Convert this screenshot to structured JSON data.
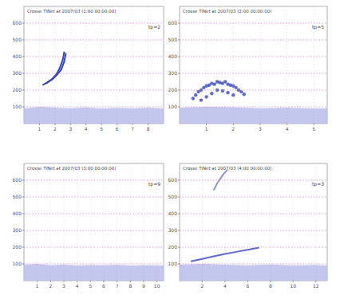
{
  "chart_data": [
    {
      "type": "line",
      "title": "Crosse TiNet at 2007/03 (1:00 00:00:00)",
      "annotations": [
        "tp=2"
      ],
      "xlim": [
        0,
        9
      ],
      "xticks": [
        1,
        2,
        3,
        4,
        5,
        6,
        7,
        8
      ],
      "ylim": [
        0,
        700
      ],
      "yticks": [
        100,
        200,
        300,
        400,
        500,
        600
      ],
      "grid": true,
      "series": [
        {
          "type": "area",
          "color": "#b9bdea",
          "x": [
            0,
            1,
            2,
            3,
            4,
            5,
            6,
            7,
            8,
            9
          ],
          "values": [
            90,
            100,
            95,
            92,
            96,
            90,
            94,
            92,
            95,
            90
          ]
        },
        {
          "type": "line",
          "color": "#3447c4",
          "x": [
            1.2,
            1.5,
            1.8,
            2.1,
            2.3,
            2.5,
            2.6
          ],
          "values": [
            230,
            245,
            265,
            295,
            330,
            380,
            430
          ]
        },
        {
          "type": "line",
          "color": "#3447c4",
          "x": [
            1.4,
            1.8,
            2.1,
            2.4,
            2.6,
            2.7
          ],
          "values": [
            240,
            262,
            288,
            322,
            372,
            420
          ]
        }
      ]
    },
    {
      "type": "line",
      "title": "Crosse TiNet at 2007/03 (2:00 00:00:00)",
      "annotations": [
        "tp=5"
      ],
      "xlim": [
        0,
        5.5
      ],
      "xticks": [
        1,
        2,
        3,
        4,
        5
      ],
      "ylim": [
        0,
        700
      ],
      "yticks": [
        100,
        200,
        300,
        400,
        500,
        600
      ],
      "grid": true,
      "series": [
        {
          "type": "area",
          "color": "#b9bdea",
          "x": [
            0,
            1,
            2,
            3,
            4,
            5,
            5.5
          ],
          "values": [
            95,
            100,
            98,
            92,
            95,
            90,
            92
          ]
        },
        {
          "type": "scatter",
          "color": "#3447c4",
          "x": [
            0.5,
            0.6,
            0.7,
            0.8,
            0.9,
            1.0,
            1.1,
            1.2,
            1.3,
            1.4,
            1.5,
            1.6,
            1.7,
            1.8,
            1.9,
            2.0,
            2.1,
            2.2,
            2.3,
            2.4,
            0.8,
            1.0,
            1.2,
            1.4,
            1.6,
            1.8,
            2.0
          ],
          "values": [
            150,
            170,
            190,
            200,
            215,
            225,
            230,
            240,
            235,
            250,
            245,
            240,
            250,
            235,
            230,
            225,
            215,
            200,
            190,
            175,
            140,
            160,
            180,
            200,
            195,
            185,
            170
          ]
        }
      ]
    },
    {
      "type": "line",
      "title": "Crosse TiNet at 2007/03 (3:00 00:00:00)",
      "annotations": [
        "tp=9"
      ],
      "xlim": [
        0,
        10.5
      ],
      "xticks": [
        1,
        2,
        3,
        4,
        5,
        6,
        7,
        8,
        9,
        10
      ],
      "ylim": [
        0,
        700
      ],
      "yticks": [
        100,
        200,
        300,
        400,
        500,
        600
      ],
      "grid": true,
      "series": [
        {
          "type": "area",
          "color": "#b9bdea",
          "x": [
            0,
            1,
            2,
            3,
            4,
            5,
            6,
            7,
            8,
            9,
            10,
            10.5
          ],
          "values": [
            95,
            100,
            92,
            96,
            90,
            94,
            92,
            95,
            90,
            93,
            92,
            90
          ]
        }
      ]
    },
    {
      "type": "line",
      "title": "Crosse TiNet at 2007/03 (4:00 00:00:00)",
      "annotations": [
        "tp=3"
      ],
      "xlim": [
        0,
        13
      ],
      "xticks": [
        2,
        4,
        6,
        8,
        10,
        12
      ],
      "ylim": [
        0,
        700
      ],
      "yticks": [
        100,
        200,
        300,
        400,
        500,
        600
      ],
      "grid": true,
      "series": [
        {
          "type": "area",
          "color": "#b9bdea",
          "x": [
            0,
            2,
            4,
            6,
            8,
            10,
            12,
            13
          ],
          "values": [
            95,
            100,
            95,
            92,
            96,
            92,
            94,
            90
          ]
        },
        {
          "type": "line",
          "color": "#5a6ad0",
          "x": [
            1,
            2,
            3,
            4,
            5,
            6,
            7
          ],
          "values": [
            115,
            130,
            145,
            160,
            172,
            185,
            198
          ]
        },
        {
          "type": "line",
          "color": "#8a92d8",
          "x": [
            3.0,
            3.3,
            3.6,
            3.9,
            4.2
          ],
          "values": [
            540,
            580,
            610,
            640,
            660
          ]
        }
      ]
    }
  ]
}
